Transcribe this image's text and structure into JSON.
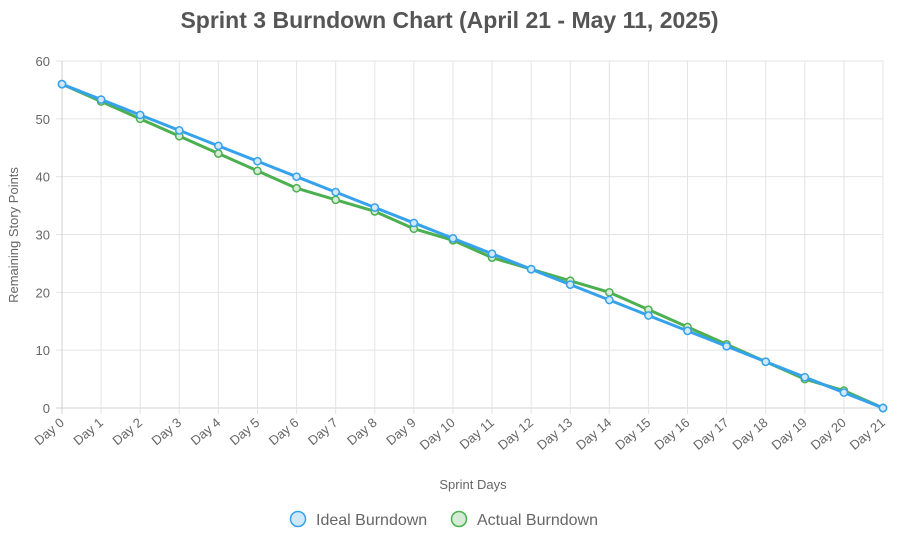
{
  "chart_data": {
    "type": "line",
    "title": "Sprint 3 Burndown Chart (April 21 - May 11, 2025)",
    "xlabel": "Sprint Days",
    "ylabel": "Remaining Story Points",
    "categories": [
      "Day 0",
      "Day 1",
      "Day 2",
      "Day 3",
      "Day 4",
      "Day 5",
      "Day 6",
      "Day 7",
      "Day 8",
      "Day 9",
      "Day 10",
      "Day 11",
      "Day 12",
      "Day 13",
      "Day 14",
      "Day 15",
      "Day 16",
      "Day 17",
      "Day 18",
      "Day 19",
      "Day 20",
      "Day 21"
    ],
    "ylim": [
      0,
      60
    ],
    "yticks": [
      0,
      10,
      20,
      30,
      40,
      50,
      60
    ],
    "grid": true,
    "legend_position": "bottom",
    "series": [
      {
        "name": "Ideal Burndown",
        "color": "#36a2eb",
        "fill": "#cfe8fa",
        "values": [
          56,
          53.33,
          50.67,
          48,
          45.33,
          42.67,
          40,
          37.33,
          34.67,
          32,
          29.33,
          26.67,
          24,
          21.33,
          18.67,
          16,
          13.33,
          10.67,
          8,
          5.33,
          2.67,
          0
        ]
      },
      {
        "name": "Actual Burndown",
        "color": "#4caf50",
        "fill": "#d4ecd5",
        "values": [
          56,
          53,
          50,
          47,
          44,
          41,
          38,
          36,
          34,
          31,
          29,
          26,
          24,
          22,
          20,
          17,
          14,
          11,
          8,
          5,
          3,
          0
        ]
      }
    ]
  }
}
